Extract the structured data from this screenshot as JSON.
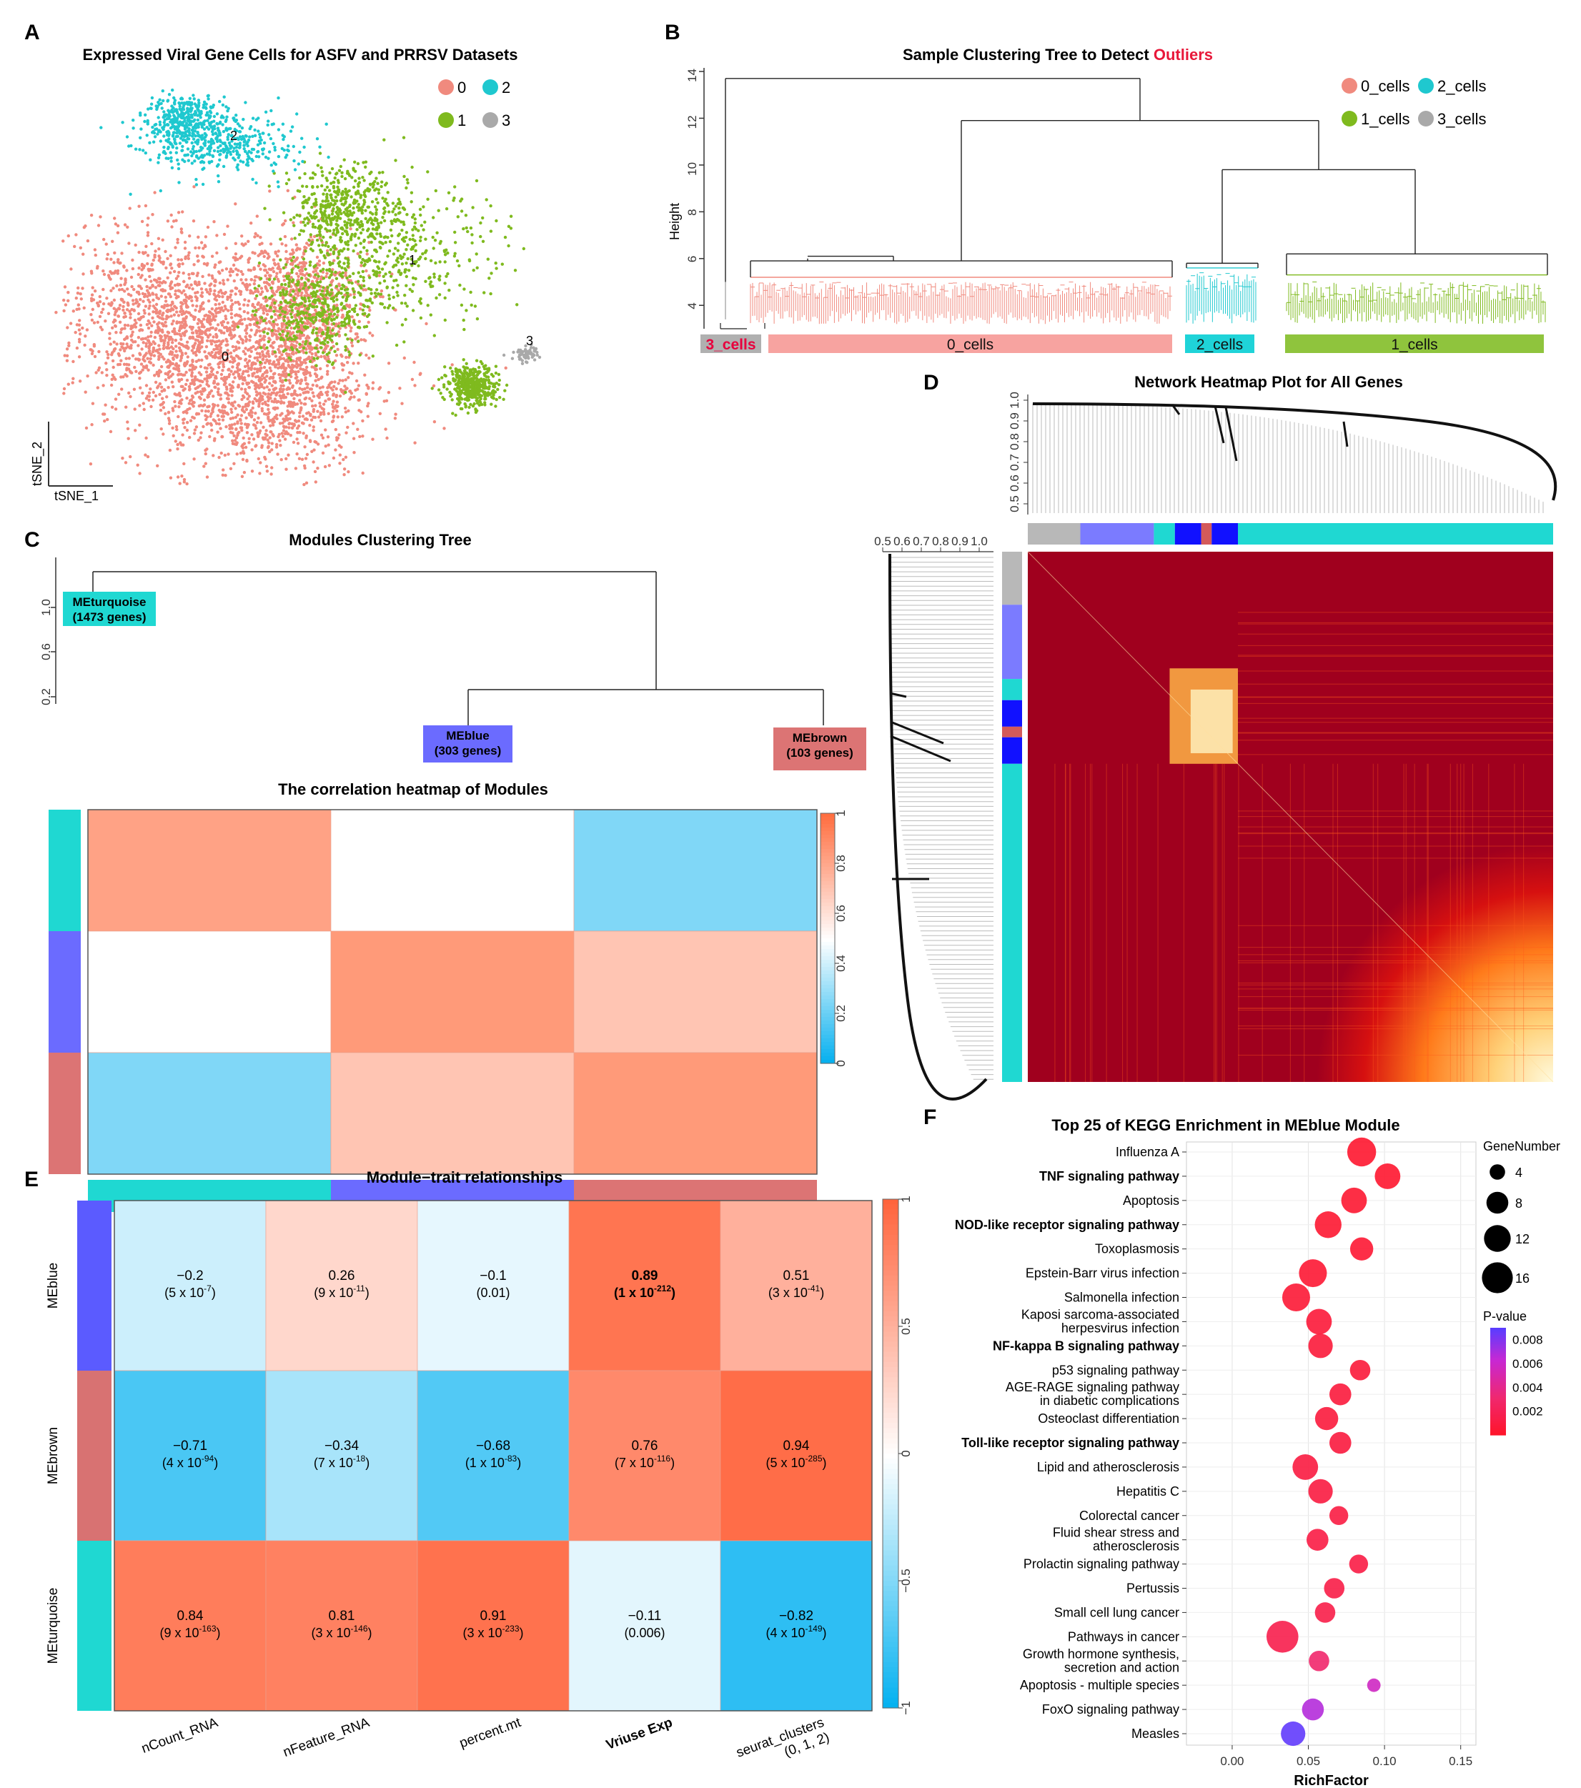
{
  "panels": {
    "A": {
      "letter": "A",
      "title": "Expressed Viral Gene Cells for ASFV and PRRSV Datasets",
      "xlabel": "tSNE_1",
      "ylabel": "tSNE_2",
      "legend": [
        {
          "label": "0",
          "color": "#f08a7e"
        },
        {
          "label": "2",
          "color": "#1fc8cf"
        },
        {
          "label": "1",
          "color": "#7fba1e"
        },
        {
          "label": "3",
          "color": "#a9a9a9"
        }
      ],
      "cluster_labels": [
        "0",
        "1",
        "2",
        "3"
      ]
    },
    "B": {
      "letter": "B",
      "title_prefix": "Sample Clustering Tree to Detect ",
      "title_highlight": "Outliers",
      "ylabel": "Height",
      "yticks": [
        "4",
        "6",
        "8",
        "10",
        "12",
        "14"
      ],
      "legend": [
        {
          "label": "0_cells",
          "color": "#f08a7e"
        },
        {
          "label": "2_cells",
          "color": "#1fc8cf"
        },
        {
          "label": "1_cells",
          "color": "#7fba1e"
        },
        {
          "label": "3_cells",
          "color": "#a9a9a9"
        }
      ],
      "bars": [
        {
          "label": "3_cells",
          "color": "#b0b0b0",
          "text_color": "#e8003d"
        },
        {
          "label": "0_cells",
          "color": "#f7a3a0",
          "text_color": "#111111"
        },
        {
          "label": "2_cells",
          "color": "#1fd3d8",
          "text_color": "#111111"
        },
        {
          "label": "1_cells",
          "color": "#8fc43d",
          "text_color": "#111111"
        }
      ]
    },
    "C": {
      "letter": "C",
      "tree_title": "Modules Clustering Tree",
      "yticks": [
        "0.2",
        "0.6",
        "1.0"
      ],
      "modules": [
        {
          "name": "MEturquoise",
          "genes": "(1473 genes)",
          "color": "#1fd8d2"
        },
        {
          "name": "MEblue",
          "genes": "(303 genes)",
          "color": "#6b6bff"
        },
        {
          "name": "MEbrown",
          "genes": "(103 genes)",
          "color": "#dc7474"
        }
      ],
      "heatmap_title": "The correlation heatmap of Modules",
      "colorbar_ticks": [
        "0",
        "0.2",
        "0.4",
        "0.6",
        "0.8",
        "1"
      ]
    },
    "D": {
      "letter": "D",
      "title": "Network Heatmap Plot for All Genes",
      "top_ticks": [
        "0.5",
        "0.6",
        "0.7",
        "0.8",
        "0.9",
        "1.0"
      ],
      "left_ticks": [
        "0.5",
        "0.6",
        "0.7",
        "0.8",
        "0.9",
        "1.0"
      ]
    },
    "E": {
      "letter": "E",
      "title": "Module−trait relationships",
      "colorbar_ticks": [
        "1",
        "0.5",
        "0",
        "−0.5",
        "−1"
      ]
    },
    "F": {
      "letter": "F",
      "title": "Top 25 of KEGG Enrichment in  MEblue Module",
      "size_legend_title": "GeneNumber",
      "size_legend": [
        "4",
        "8",
        "12",
        "16"
      ],
      "color_legend_title": "P-value",
      "color_legend_ticks": [
        "0.008",
        "0.006",
        "0.004",
        "0.002"
      ]
    }
  },
  "chart_data": [
    {
      "type": "scatter",
      "title": "Expressed Viral Gene Cells for ASFV and PRRSV Datasets",
      "xlabel": "tSNE_1",
      "ylabel": "tSNE_2",
      "series": [
        {
          "name": "0"
        },
        {
          "name": "1"
        },
        {
          "name": "2"
        },
        {
          "name": "3"
        }
      ]
    },
    {
      "type": "dendrogram",
      "title": "Sample Clustering Tree to Detect Outliers",
      "ylabel": "Height",
      "ylim": [
        3,
        14
      ],
      "series": [
        {
          "name": "3_cells"
        },
        {
          "name": "0_cells"
        },
        {
          "name": "2_cells"
        },
        {
          "name": "1_cells"
        }
      ]
    },
    {
      "type": "heatmap",
      "title": "The correlation heatmap of Modules",
      "rows": [
        "MEturquoise",
        "MEblue",
        "MEbrown"
      ],
      "cols": [
        "MEturquoise",
        "MEblue",
        "MEbrown"
      ],
      "values": [
        [
          0.82,
          0.5,
          0.25
        ],
        [
          0.5,
          0.85,
          0.7
        ],
        [
          0.25,
          0.7,
          0.85
        ]
      ],
      "colorbar_range": [
        0,
        1
      ]
    },
    {
      "type": "heatmap",
      "title": "Module−trait relationships",
      "rows": [
        "MEblue",
        "MEbrown",
        "MEturquoise"
      ],
      "row_colors": [
        "#5b5bff",
        "#d87272",
        "#1fd8d2"
      ],
      "cols": [
        "nCount_RNA",
        "nFeature_RNA",
        "percent.mt",
        "Vriuse Exp",
        "seurat_clusters\n(0, 1, 2)"
      ],
      "bold_cols": [
        3
      ],
      "values": [
        [
          -0.2,
          0.26,
          -0.1,
          0.89,
          0.51
        ],
        [
          -0.71,
          -0.34,
          -0.68,
          0.76,
          0.94
        ],
        [
          0.84,
          0.81,
          0.91,
          -0.11,
          -0.82
        ]
      ],
      "labels": [
        [
          "−0.2",
          "0.26",
          "−0.1",
          "0.89",
          "0.51"
        ],
        [
          "−0.71",
          "−0.34",
          "−0.68",
          "0.76",
          "0.94"
        ],
        [
          "0.84",
          "0.81",
          "0.91",
          "−0.11",
          "−0.82"
        ]
      ],
      "pvals": [
        [
          [
            "(5 x 10",
            "-7",
            ")"
          ],
          [
            "(9 x 10",
            "-11",
            ")"
          ],
          [
            "(0.01)",
            "",
            ""
          ],
          [
            "(1 x 10",
            "-212",
            ")"
          ],
          [
            "(3 x 10",
            "-41",
            ")"
          ]
        ],
        [
          [
            "(4 x 10",
            "-94",
            ")"
          ],
          [
            "(7 x 10",
            "-18",
            ")"
          ],
          [
            "(1 x 10",
            "-83",
            ")"
          ],
          [
            "(7 x 10",
            "-116",
            ")"
          ],
          [
            "(5 x 10",
            "-285",
            ")"
          ]
        ],
        [
          [
            "(9 x 10",
            "-163",
            ")"
          ],
          [
            "(3 x 10",
            "-146",
            ")"
          ],
          [
            "(3 x 10",
            "-233",
            ")"
          ],
          [
            "(0.006)",
            "",
            ""
          ],
          [
            "(4 x 10",
            "-149",
            ")"
          ]
        ]
      ],
      "colorbar_range": [
        -1,
        1
      ]
    },
    {
      "type": "scatter",
      "title": "Top 25 of KEGG Enrichment in  MEblue Module",
      "xlabel": "RichFactor",
      "xlim": [
        -0.03,
        0.16
      ],
      "xticks": [
        "0.00",
        "0.05",
        "0.10",
        "0.15"
      ],
      "pvalue_range": [
        0,
        0.009
      ],
      "categories": [
        {
          "name": "Influenza A",
          "bold": false
        },
        {
          "name": "TNF signaling pathway",
          "bold": true
        },
        {
          "name": "Apoptosis",
          "bold": false
        },
        {
          "name": "NOD-like receptor signaling pathway",
          "bold": true
        },
        {
          "name": "Toxoplasmosis",
          "bold": false
        },
        {
          "name": "Epstein-Barr virus infection",
          "bold": false
        },
        {
          "name": "Salmonella infection",
          "bold": false
        },
        {
          "name": "Kaposi sarcoma-associated\nherpesvirus infection",
          "bold": false
        },
        {
          "name": "NF-kappa B signaling pathway",
          "bold": true
        },
        {
          "name": "p53 signaling pathway",
          "bold": false
        },
        {
          "name": "AGE-RAGE signaling pathway\nin diabetic complications",
          "bold": false
        },
        {
          "name": "Osteoclast differentiation",
          "bold": false
        },
        {
          "name": "Toll-like receptor signaling pathway",
          "bold": true
        },
        {
          "name": "Lipid and atherosclerosis",
          "bold": false
        },
        {
          "name": "Hepatitis C",
          "bold": false
        },
        {
          "name": "Colorectal cancer",
          "bold": false
        },
        {
          "name": "Fluid shear stress and\natherosclerosis",
          "bold": false
        },
        {
          "name": "Prolactin signaling pathway",
          "bold": false
        },
        {
          "name": "Pertussis",
          "bold": false
        },
        {
          "name": "Small cell lung cancer",
          "bold": false
        },
        {
          "name": "Pathways in cancer",
          "bold": false
        },
        {
          "name": "Growth hormone synthesis,\nsecretion and action",
          "bold": false
        },
        {
          "name": "Apoptosis - multiple species",
          "bold": false
        },
        {
          "name": "FoxO signaling pathway",
          "bold": false
        },
        {
          "name": "Measles",
          "bold": false
        }
      ],
      "points": [
        {
          "x": 0.085,
          "gene": 14,
          "p": 0.0003
        },
        {
          "x": 0.102,
          "gene": 11,
          "p": 0.0003
        },
        {
          "x": 0.08,
          "gene": 11,
          "p": 0.0004
        },
        {
          "x": 0.063,
          "gene": 12,
          "p": 0.0004
        },
        {
          "x": 0.085,
          "gene": 9,
          "p": 0.0005
        },
        {
          "x": 0.053,
          "gene": 13,
          "p": 0.0005
        },
        {
          "x": 0.042,
          "gene": 13,
          "p": 0.0006
        },
        {
          "x": 0.057,
          "gene": 11,
          "p": 0.0007
        },
        {
          "x": 0.058,
          "gene": 10,
          "p": 0.0008
        },
        {
          "x": 0.084,
          "gene": 7,
          "p": 0.0008
        },
        {
          "x": 0.071,
          "gene": 8,
          "p": 0.0009
        },
        {
          "x": 0.062,
          "gene": 9,
          "p": 0.0009
        },
        {
          "x": 0.071,
          "gene": 8,
          "p": 0.001
        },
        {
          "x": 0.048,
          "gene": 11,
          "p": 0.0011
        },
        {
          "x": 0.058,
          "gene": 10,
          "p": 0.0011
        },
        {
          "x": 0.07,
          "gene": 6,
          "p": 0.0012
        },
        {
          "x": 0.056,
          "gene": 8,
          "p": 0.0013
        },
        {
          "x": 0.083,
          "gene": 6,
          "p": 0.0013
        },
        {
          "x": 0.067,
          "gene": 7,
          "p": 0.0014
        },
        {
          "x": 0.061,
          "gene": 7,
          "p": 0.0015
        },
        {
          "x": 0.033,
          "gene": 17,
          "p": 0.0016
        },
        {
          "x": 0.057,
          "gene": 7,
          "p": 0.003
        },
        {
          "x": 0.093,
          "gene": 3,
          "p": 0.0058
        },
        {
          "x": 0.053,
          "gene": 8,
          "p": 0.0068
        },
        {
          "x": 0.04,
          "gene": 10,
          "p": 0.0088
        }
      ]
    }
  ]
}
